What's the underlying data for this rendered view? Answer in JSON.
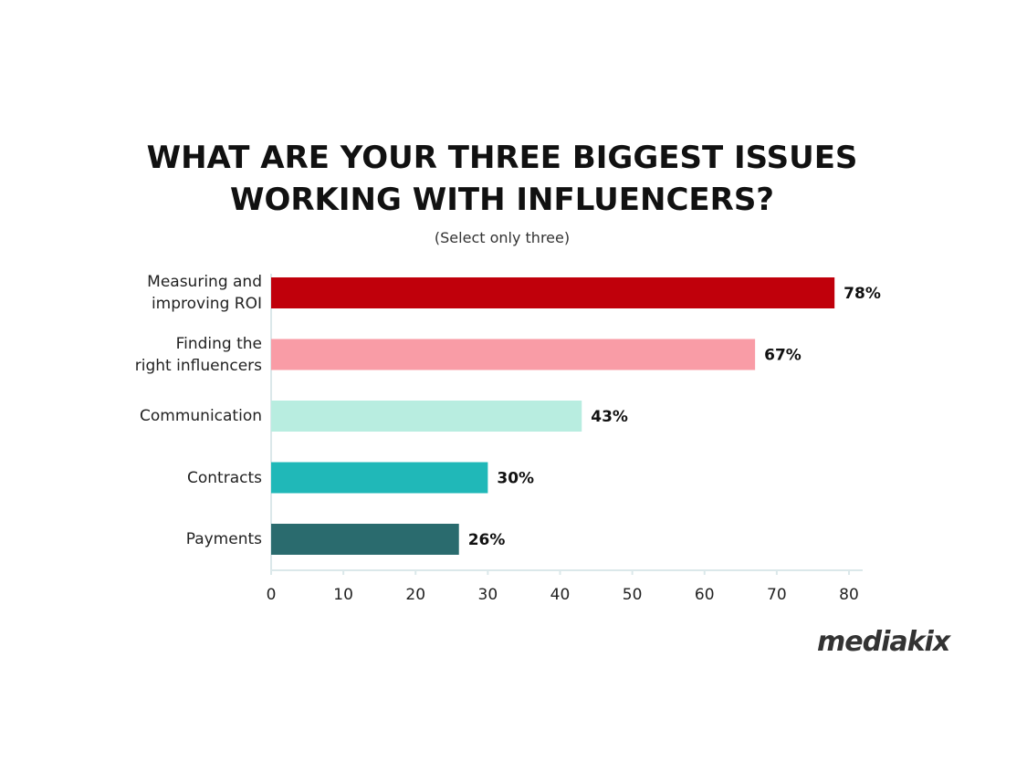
{
  "chart_data": {
    "type": "hbar",
    "title": "WHAT ARE YOUR THREE BIGGEST ISSUES\nWORKING WITH INFLUENCERS?",
    "subtitle": "(Select only three)",
    "categories": [
      "Measuring and\nimproving ROI",
      "Finding the\nright influencers",
      "Communication",
      "Contracts",
      "Payments"
    ],
    "values": [
      78,
      67,
      43,
      30,
      26
    ],
    "value_labels": [
      "78%",
      "67%",
      "43%",
      "30%",
      "26%"
    ],
    "colors": [
      "#c0000b",
      "#f99ca6",
      "#b8ede0",
      "#20b8b8",
      "#2a6b6e"
    ],
    "xlim": [
      0,
      80
    ],
    "xticks": [
      0,
      10,
      20,
      30,
      40,
      50,
      60,
      70,
      80
    ],
    "logo": "mediakix"
  }
}
